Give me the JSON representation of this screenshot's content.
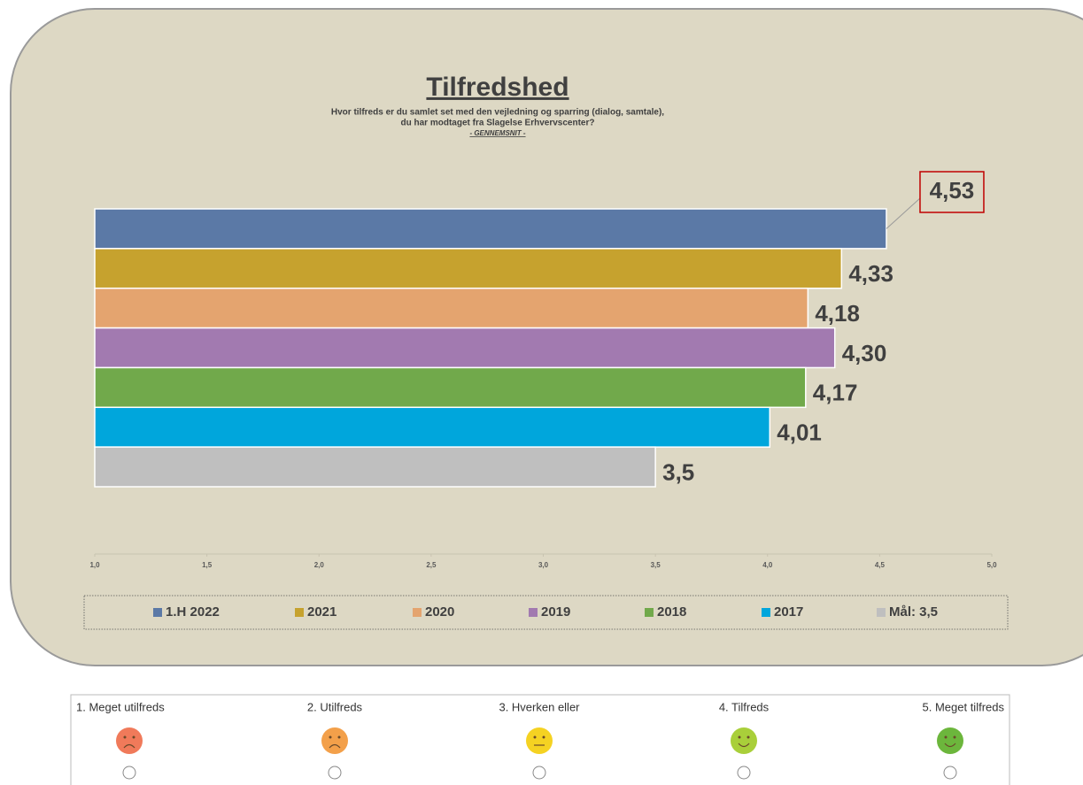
{
  "chart_data": {
    "type": "bar",
    "orientation": "horizontal",
    "title": "Tilfredshed",
    "subtitle": [
      "Hvor tilfreds er du samlet set med den vejledning og sparring (dialog, samtale),",
      "du har modtaget fra Slagelse Erhvervscenter?"
    ],
    "note": "- GENNEMSNIT -",
    "series": [
      {
        "name": "1.H 2022",
        "color": "#5b79a6",
        "values": [
          4.53
        ],
        "value_labels": [
          "4,53"
        ]
      },
      {
        "name": "2021",
        "color": "#c6a22e",
        "values": [
          4.33
        ],
        "value_labels": [
          "4,33"
        ]
      },
      {
        "name": "2020",
        "color": "#e4a46f",
        "values": [
          4.18
        ],
        "value_labels": [
          "4,18"
        ]
      },
      {
        "name": "2019",
        "color": "#a27ab0",
        "values": [
          4.3
        ],
        "value_labels": [
          "4,30"
        ]
      },
      {
        "name": "2018",
        "color": "#71a94b",
        "values": [
          4.17
        ],
        "value_labels": [
          "4,17"
        ]
      },
      {
        "name": "2017",
        "color": "#00a6dc",
        "values": [
          4.01
        ],
        "value_labels": [
          "4,01"
        ]
      },
      {
        "name": "Mål: 3,5",
        "color": "#bfbfbf",
        "values": [
          3.5
        ],
        "value_labels": [
          "3,5"
        ]
      }
    ],
    "xlim": [
      1,
      5
    ],
    "xticks": [
      {
        "value": 1,
        "label": "1,0"
      },
      {
        "value": 1.5,
        "label": "1,5"
      },
      {
        "value": 2,
        "label": "2,0"
      },
      {
        "value": 2.5,
        "label": "2,5"
      },
      {
        "value": 3,
        "label": "3,0"
      },
      {
        "value": 3.5,
        "label": "3,5"
      },
      {
        "value": 4,
        "label": "4,0"
      },
      {
        "value": 4.5,
        "label": "4,5"
      },
      {
        "value": 5,
        "label": "5,0"
      }
    ],
    "legend": "bottom"
  },
  "rating_scale": {
    "options": [
      {
        "label": "1. Meget utilfreds",
        "color": "#f07a5a"
      },
      {
        "label": "2. Utilfreds",
        "color": "#f3a04a"
      },
      {
        "label": "3. Hverken eller",
        "color": "#f5d222"
      },
      {
        "label": "4. Tilfreds",
        "color": "#a9cf3a"
      },
      {
        "label": "5. Meget tilfreds",
        "color": "#6cb63c"
      }
    ]
  }
}
